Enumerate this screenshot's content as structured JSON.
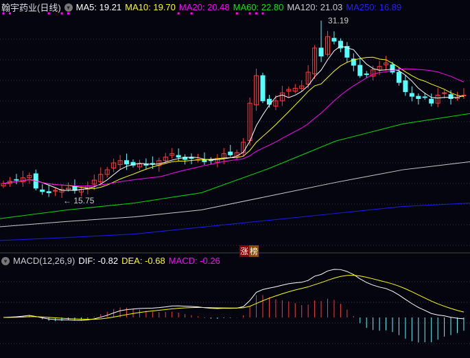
{
  "header": {
    "stock_name": "翰宇药业(日线)",
    "ma5": "MA5: 19.21",
    "ma10": "MA10: 19.70",
    "ma20": "MA20: 20.48",
    "ma60": "MA60: 22.80",
    "ma120": "MA120: 21.03",
    "ma250": "MA250: 16.89"
  },
  "macd_header": {
    "label": "MACD(12,26,9)",
    "dif": "DIF: -0.82",
    "dea": "DEA: -0.68",
    "macd": "MACD: -0.26"
  },
  "badge": {
    "a": "涨",
    "b": "榜"
  },
  "colors": {
    "up": "#ff3b3b",
    "down": "#54ffff",
    "ma5": "#ffffff",
    "ma10": "#ffff00",
    "ma20": "#ff00ff",
    "ma60": "#00e000",
    "ma120": "#cccccc",
    "ma250": "#1a1aff"
  },
  "chart_data": {
    "type": "candlestick",
    "annotations": {
      "high": "31.19",
      "low": "15.75"
    },
    "high_index": 49,
    "low_index": 9,
    "marker_indices": [
      0,
      1,
      7,
      9,
      10,
      27,
      29,
      36,
      38,
      39,
      40
    ],
    "closes": [
      17.0,
      17.2,
      17.3,
      17.5,
      17.7,
      16.6,
      16.3,
      16.2,
      16.4,
      16.5,
      16.6,
      16.4,
      16.5,
      16.8,
      17.3,
      17.8,
      18.2,
      18.8,
      19.0,
      18.7,
      18.6,
      18.7,
      18.6,
      18.7,
      19.0,
      19.3,
      19.6,
      19.3,
      19.1,
      19.2,
      19.1,
      18.9,
      19.0,
      19.2,
      19.6,
      19.5,
      19.7,
      20.6,
      24.0,
      26.4,
      24.2,
      23.9,
      24.2,
      24.9,
      25.2,
      25.3,
      25.5,
      26.7,
      28.8,
      28.1,
      29.8,
      29.4,
      28.8,
      28.0,
      27.3,
      26.4,
      26.5,
      26.9,
      27.2,
      27.5,
      26.7,
      25.8,
      25.0,
      24.6,
      24.4,
      24.5,
      24.0,
      24.7,
      24.9,
      24.4,
      24.5,
      24.7
    ],
    "ma60": [
      13.95,
      14.7,
      15.3,
      16.2,
      18.3,
      20.7,
      22.2,
      23.1
    ],
    "ma120": [
      13.24,
      13.7,
      14.1,
      14.7,
      15.9,
      17.1,
      18.2,
      18.9
    ],
    "ma250": [
      12.04,
      12.3,
      12.6,
      13.2,
      13.8,
      14.4,
      15.0,
      15.3
    ]
  }
}
